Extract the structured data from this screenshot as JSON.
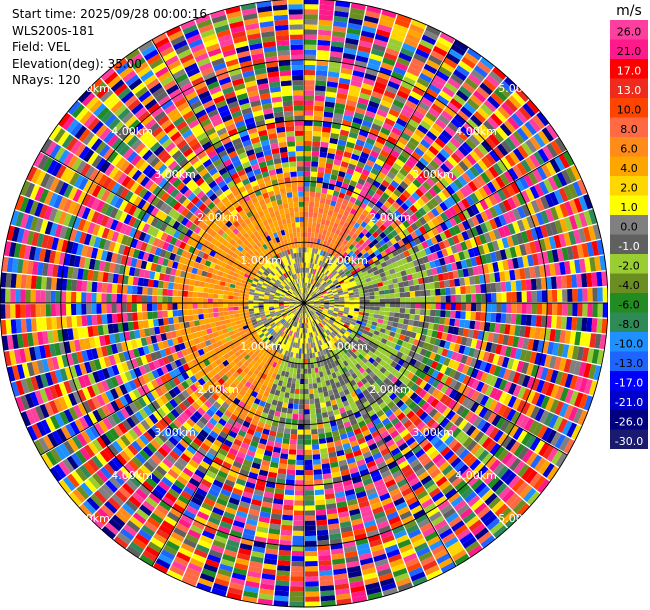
{
  "header": {
    "start_time": "Start time: 2025/09/28 00:00:16",
    "device": "WLS200s-181",
    "field": "Field: VEL",
    "elevation": "Elevation(deg): 35.00",
    "nrays": "NRays: 120"
  },
  "chart_data": {
    "type": "heatmap",
    "projection": "polar-ppi",
    "nrays": 120,
    "range_rings_km": [
      1.0,
      2.0,
      3.0,
      4.0,
      5.0
    ],
    "ring_labels": [
      "1.00km",
      "2.00km",
      "3.00km",
      "4.00km",
      "5.00km"
    ],
    "max_range_km": 5.0,
    "colorbar": {
      "unit": "m/s",
      "levels": [
        "26.0",
        "21.0",
        "17.0",
        "13.0",
        "10.0",
        "8.0",
        "6.0",
        "4.0",
        "2.0",
        "1.0",
        "0.0",
        "-1.0",
        "-2.0",
        "-4.0",
        "-6.0",
        "-8.0",
        "-10.0",
        "-13.0",
        "-17.0",
        "-21.0",
        "-26.0",
        "-30.0"
      ],
      "colors": [
        "#ff3fa0",
        "#ff1a8c",
        "#ff0000",
        "#ee2b1c",
        "#ff4400",
        "#ff6a45",
        "#ff8c1a",
        "#ffa500",
        "#ffd700",
        "#ffff00",
        "#808080",
        "#606060",
        "#9acd32",
        "#6b8e23",
        "#228b22",
        "#2e8b57",
        "#1e90ff",
        "#1e64ff",
        "#0000ff",
        "#0000cd",
        "#000080",
        "#1a1a6e"
      ]
    },
    "field_regions": [
      {
        "description": "near-zero velocities",
        "r_km": [
          0,
          0.9
        ],
        "value": 0.0
      },
      {
        "description": "positive velocities",
        "az_deg": [
          200,
          360
        ],
        "r_km": [
          0.5,
          2.2
        ],
        "value": 4.0
      },
      {
        "description": "positive velocities",
        "az_deg": [
          0,
          40
        ],
        "r_km": [
          0.5,
          1.8
        ],
        "value": 6.0
      },
      {
        "description": "negative velocities",
        "az_deg": [
          60,
          200
        ],
        "r_km": [
          0.5,
          2.2
        ],
        "value": -2.0
      },
      {
        "description": "negative velocities",
        "az_deg": [
          100,
          175
        ],
        "r_km": [
          2.0,
          5.0
        ],
        "value": -6.0
      },
      {
        "description": "noise beyond valid range",
        "r_km": [
          2.2,
          5.0
        ],
        "value": "random"
      }
    ]
  }
}
